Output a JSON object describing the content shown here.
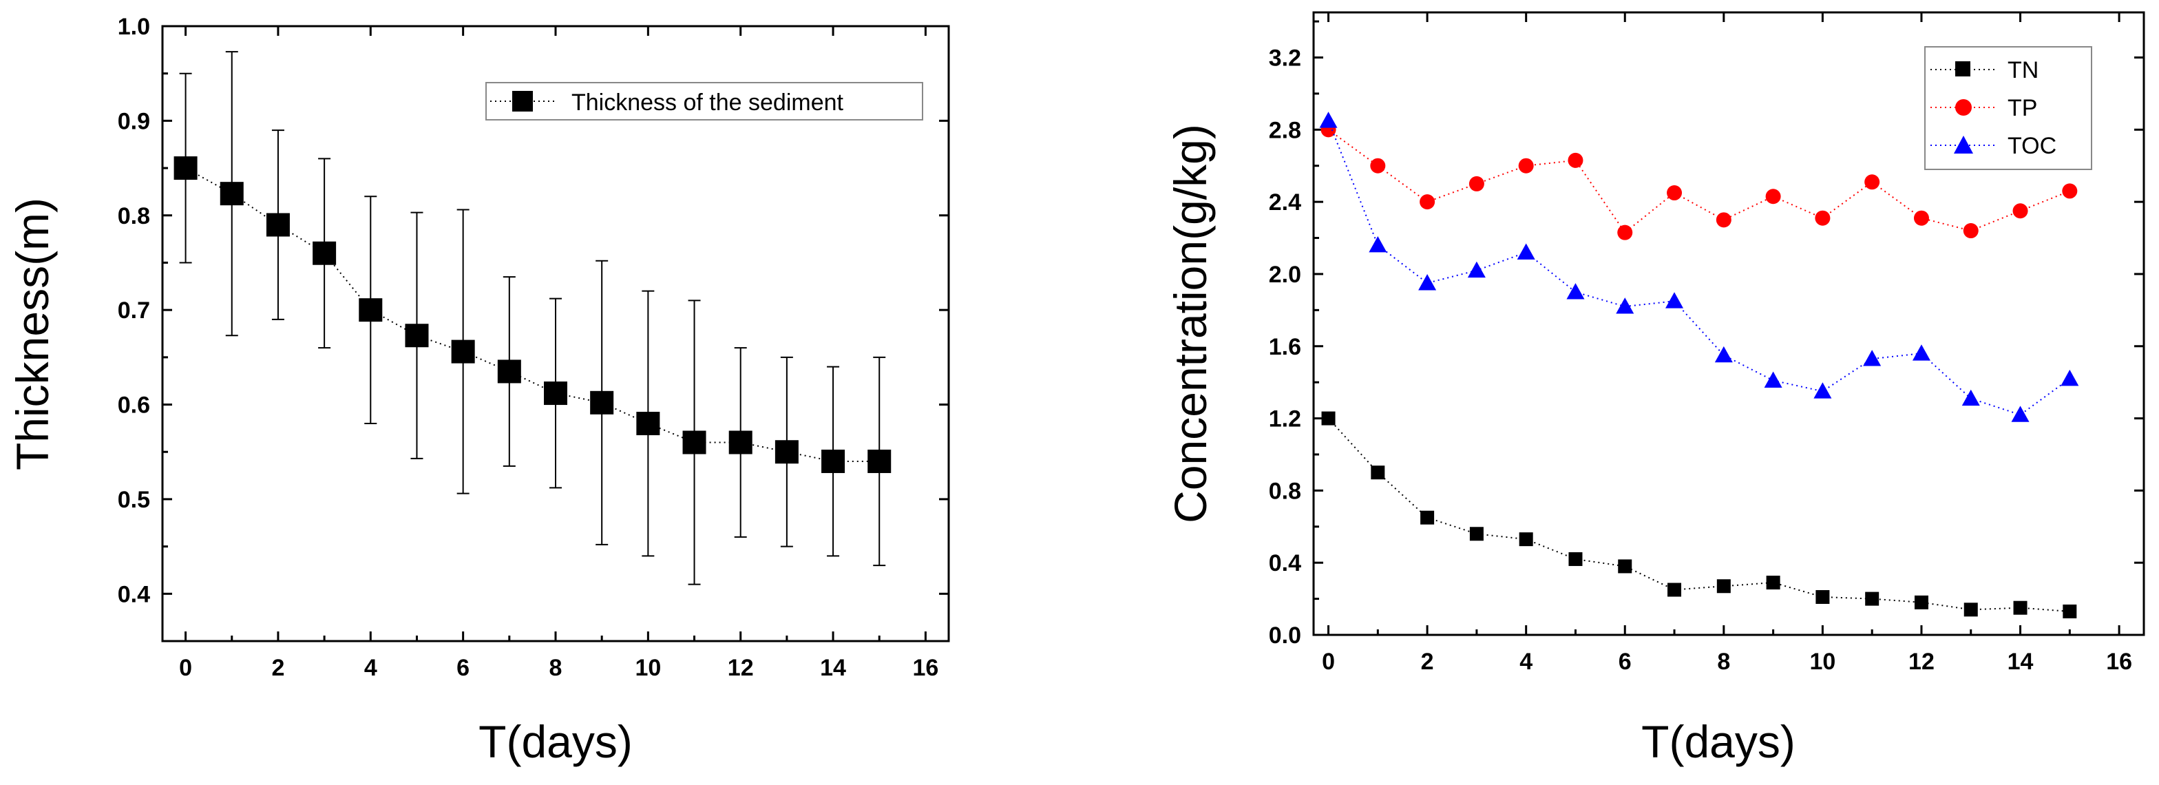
{
  "chart_data": [
    {
      "type": "line",
      "title": "",
      "xlabel": "T(days)",
      "ylabel": "Thickness(m)",
      "xlim": [
        -0.5,
        16.5
      ],
      "ylim": [
        0.35,
        1.0
      ],
      "xticks": [
        0,
        2,
        4,
        6,
        8,
        10,
        12,
        14,
        16
      ],
      "yticks": [
        0.4,
        0.5,
        0.6,
        0.7,
        0.8,
        0.9,
        1.0
      ],
      "ytick_labels": [
        "0.4",
        "0.5",
        "0.6",
        "0.7",
        "0.8",
        "0.9",
        "1.0"
      ],
      "x": [
        0,
        1,
        2,
        3,
        4,
        5,
        6,
        7,
        8,
        9,
        10,
        11,
        12,
        13,
        14,
        15
      ],
      "series": [
        {
          "name": "Thickness of the sediment",
          "color": "#000000",
          "marker": "square",
          "values": [
            0.85,
            0.823,
            0.79,
            0.76,
            0.7,
            0.673,
            0.656,
            0.635,
            0.612,
            0.602,
            0.58,
            0.56,
            0.56,
            0.55,
            0.54,
            0.54
          ],
          "error": [
            0.1,
            0.15,
            0.1,
            0.1,
            0.12,
            0.13,
            0.15,
            0.1,
            0.1,
            0.15,
            0.14,
            0.15,
            0.1,
            0.1,
            0.1,
            0.11
          ]
        }
      ],
      "legend_position": "top-right"
    },
    {
      "type": "line",
      "title": "",
      "xlabel": "T(days)",
      "ylabel": "Concentration(g/kg)",
      "xlim": [
        -0.3,
        16.5
      ],
      "ylim": [
        0.0,
        3.45
      ],
      "xticks": [
        0,
        2,
        4,
        6,
        8,
        10,
        12,
        14,
        16
      ],
      "yticks": [
        0.0,
        0.4,
        0.8,
        1.2,
        1.6,
        2.0,
        2.4,
        2.8,
        3.2
      ],
      "ytick_labels": [
        "0.0",
        "0.4",
        "0.8",
        "1.2",
        "1.6",
        "2.0",
        "2.4",
        "2.8",
        "3.2"
      ],
      "x": [
        0,
        1,
        2,
        3,
        4,
        5,
        6,
        7,
        8,
        9,
        10,
        11,
        12,
        13,
        14,
        15
      ],
      "series": [
        {
          "name": "TN",
          "color": "#000000",
          "marker": "square",
          "values": [
            1.2,
            0.9,
            0.65,
            0.56,
            0.53,
            0.42,
            0.38,
            0.25,
            0.27,
            0.29,
            0.21,
            0.2,
            0.18,
            0.14,
            0.15,
            0.13
          ]
        },
        {
          "name": "TP",
          "color": "#ff0000",
          "marker": "circle",
          "values": [
            2.8,
            2.6,
            2.4,
            2.5,
            2.6,
            2.63,
            2.23,
            2.45,
            2.3,
            2.43,
            2.31,
            2.51,
            2.31,
            2.24,
            2.35,
            2.46
          ]
        },
        {
          "name": "TOC",
          "color": "#0000ff",
          "marker": "triangle",
          "values": [
            2.85,
            2.16,
            1.95,
            2.02,
            2.12,
            1.9,
            1.82,
            1.85,
            1.55,
            1.41,
            1.35,
            1.53,
            1.56,
            1.31,
            1.22,
            1.42
          ]
        }
      ],
      "legend_position": "top-right"
    }
  ]
}
